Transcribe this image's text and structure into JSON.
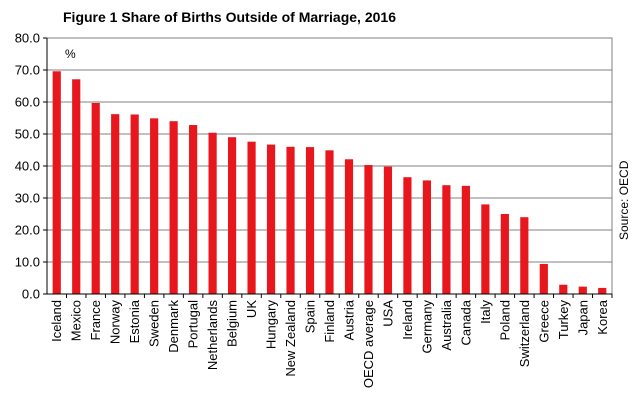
{
  "chart_data": {
    "type": "bar",
    "title": "Figure 1 Share of Births Outside of Marriage, 2016",
    "unit_label": "%",
    "source": "Source: OECD",
    "bar_color": "#e8171d",
    "grid": true,
    "ylim": [
      0,
      80
    ],
    "yticks": [
      "0.0",
      "10.0",
      "20.0",
      "30.0",
      "40.0",
      "50.0",
      "60.0",
      "70.0",
      "80.0"
    ],
    "categories": [
      "Iceland",
      "Mexico",
      "France",
      "Norway",
      "Estonia",
      "Sweden",
      "Denmark",
      "Portugal",
      "Netherlands",
      "Belgium",
      "UK",
      "Hungary",
      "New Zealand",
      "Spain",
      "Finland",
      "Austria",
      "OECD average",
      "USA",
      "Ireland",
      "Germany",
      "Australia",
      "Canada",
      "Italy",
      "Poland",
      "Switzerland",
      "Greece",
      "Turkey",
      "Japan",
      "Korea"
    ],
    "values": [
      69.6,
      67.1,
      59.7,
      56.2,
      56.1,
      54.9,
      54.0,
      52.8,
      50.4,
      49.0,
      47.6,
      46.7,
      46.0,
      45.9,
      44.9,
      42.1,
      40.3,
      39.8,
      36.5,
      35.5,
      34.0,
      33.8,
      28.0,
      25.0,
      24.0,
      9.4,
      2.9,
      2.3,
      1.9
    ]
  }
}
